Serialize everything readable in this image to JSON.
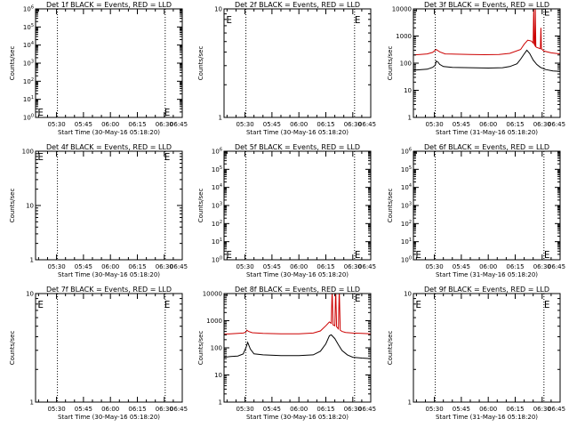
{
  "figure": {
    "x_axis_label_30": "Start Time (30-May-16 05:18:20)",
    "x_axis_label_31": "Start Time (31-May-16 05:18:20)",
    "y_axis_label": "Counts/sec",
    "legend_note": "BLACK = Events, RED = LLD"
  },
  "chart_data": [
    {
      "type": "line",
      "title": "Det 1f BLACK = Events, RED = LLD",
      "xlabel": "Start Time (30-May-16 05:18:20)",
      "ylabel": "Counts/sec",
      "scale": "log",
      "ylim_exp": [
        0,
        6
      ],
      "ytick_labels": [
        "10^0",
        "10^1",
        "10^2",
        "10^3",
        "10^4",
        "10^5",
        "10^6"
      ],
      "xtick_labels": [
        "05:30",
        "05:45",
        "06:00",
        "06:15",
        "06:30",
        "06:45"
      ],
      "xlim_min": [
        18.33,
        100
      ],
      "xticks_min": [
        30,
        45,
        60,
        75,
        90,
        105
      ],
      "vlines_min": [
        30.5,
        90.5
      ],
      "markers": [
        {
          "x_min": 19.5,
          "y_frac": 0.05
        },
        {
          "x_min": 90.0,
          "y_frac": 0.05
        }
      ],
      "series": []
    },
    {
      "type": "line",
      "title": "Det 2f BLACK = Events, RED = LLD",
      "xlabel": "Start Time (30-May-16 05:18:20)",
      "ylabel": "Counts/sec",
      "scale": "log",
      "ylim_exp": [
        0,
        1
      ],
      "ytick_labels": [
        "1",
        "10"
      ],
      "xtick_labels": [
        "05:30",
        "05:45",
        "06:00",
        "06:15",
        "06:30",
        "06:45"
      ],
      "xlim_min": [
        18.33,
        100
      ],
      "xticks_min": [
        30,
        45,
        60,
        75,
        90,
        105
      ],
      "vlines_min": [
        30.5,
        91
      ],
      "markers": [
        {
          "x_min": 19.5,
          "y_frac": 0.9
        },
        {
          "x_min": 91,
          "y_frac": 0.9
        }
      ],
      "series": []
    },
    {
      "type": "line",
      "title": "Det 3f BLACK = Events, RED = LLD",
      "xlabel": "Start Time (31-May-16 05:18:20)",
      "ylabel": "Counts/sec",
      "scale": "log",
      "ylim_exp": [
        0,
        4
      ],
      "ytick_labels": [
        "1",
        "10",
        "100",
        "1000",
        "10000"
      ],
      "xtick_labels": [
        "05:30",
        "05:45",
        "06:00",
        "06:15",
        "06:30",
        "06:45"
      ],
      "xlim_min": [
        18.33,
        100
      ],
      "xticks_min": [
        30,
        45,
        60,
        75,
        90,
        105
      ],
      "vlines_min": [
        30.5,
        91
      ],
      "markers": [
        {
          "x_min": 91,
          "y_frac": 0.97
        }
      ],
      "series": [
        {
          "name": "LLD",
          "color": "#cc0000",
          "x": [
            18.33,
            22,
            26,
            29,
            31,
            33,
            36,
            42,
            50,
            58,
            66,
            72,
            78,
            80,
            82,
            84,
            85,
            85.3,
            85.6,
            86,
            86.2,
            86.5,
            87,
            88,
            89,
            89.3,
            89.6,
            90,
            91,
            95,
            100
          ],
          "y": [
            200,
            210,
            220,
            250,
            320,
            260,
            220,
            215,
            210,
            205,
            210,
            230,
            320,
            500,
            700,
            650,
            550,
            12000,
            500,
            450,
            12000,
            400,
            380,
            360,
            340,
            2000,
            340,
            320,
            280,
            240,
            220
          ]
        },
        {
          "name": "Events",
          "color": "#000000",
          "x": [
            18.33,
            22,
            26,
            29,
            30.5,
            31,
            32,
            33,
            35,
            40,
            50,
            60,
            68,
            72,
            76,
            78,
            80,
            81.5,
            83,
            85,
            87,
            89,
            92,
            96,
            100
          ],
          "y": [
            55,
            57,
            60,
            70,
            85,
            120,
            110,
            90,
            75,
            70,
            68,
            66,
            68,
            75,
            95,
            140,
            220,
            300,
            230,
            130,
            90,
            70,
            58,
            52,
            50
          ]
        }
      ]
    },
    {
      "type": "line",
      "title": "Det 4f BLACK = Events, RED = LLD",
      "xlabel": "Start Time (30-May-16 05:18:20)",
      "ylabel": "Counts/sec",
      "scale": "log",
      "ylim_exp": [
        0,
        2
      ],
      "ytick_labels": [
        "1",
        "10",
        "100"
      ],
      "xtick_labels": [
        "05:30",
        "05:45",
        "06:00",
        "06:15",
        "06:30",
        "06:45"
      ],
      "xlim_min": [
        18.33,
        100
      ],
      "xticks_min": [
        30,
        45,
        60,
        75,
        90,
        105
      ],
      "vlines_min": [
        30.5,
        90.5
      ],
      "markers": [
        {
          "x_min": 19.5,
          "y_frac": 0.95
        },
        {
          "x_min": 90,
          "y_frac": 0.95
        }
      ],
      "series": []
    },
    {
      "type": "line",
      "title": "Det 5f BLACK = Events, RED = LLD",
      "xlabel": "Start Time (30-May-16 05:18:20)",
      "ylabel": "Counts/sec",
      "scale": "log",
      "ylim_exp": [
        0,
        6
      ],
      "ytick_labels": [
        "10^0",
        "10^1",
        "10^2",
        "10^3",
        "10^4",
        "10^5",
        "10^6"
      ],
      "xtick_labels": [
        "05:30",
        "05:45",
        "06:00",
        "06:15",
        "06:30",
        "06:45"
      ],
      "xlim_min": [
        18.33,
        100
      ],
      "xticks_min": [
        30,
        45,
        60,
        75,
        90,
        105
      ],
      "vlines_min": [
        30.5,
        91
      ],
      "markers": [
        {
          "x_min": 19.5,
          "y_frac": 0.05
        },
        {
          "x_min": 91,
          "y_frac": 0.05
        }
      ],
      "series": []
    },
    {
      "type": "line",
      "title": "Det 6f BLACK = Events, RED = LLD",
      "xlabel": "Start Time (31-May-16 05:18:20)",
      "ylabel": "Counts/sec",
      "scale": "log",
      "ylim_exp": [
        0,
        6
      ],
      "ytick_labels": [
        "10^0",
        "10^1",
        "10^2",
        "10^3",
        "10^4",
        "10^5",
        "10^6"
      ],
      "xtick_labels": [
        "05:30",
        "05:45",
        "06:00",
        "06:15",
        "06:30",
        "06:45"
      ],
      "xlim_min": [
        18.33,
        100
      ],
      "xticks_min": [
        30,
        45,
        60,
        75,
        90,
        105
      ],
      "vlines_min": [
        30.5,
        91
      ],
      "markers": [
        {
          "x_min": 19.5,
          "y_frac": 0.05
        },
        {
          "x_min": 91,
          "y_frac": 0.05
        }
      ],
      "series": []
    },
    {
      "type": "line",
      "title": "Det 7f BLACK = Events, RED = LLD",
      "xlabel": "Start Time (30-May-16 05:18:20)",
      "ylabel": "Counts/sec",
      "scale": "log",
      "ylim_exp": [
        0,
        1
      ],
      "ytick_labels": [
        "1",
        "10"
      ],
      "xtick_labels": [
        "05:30",
        "05:45",
        "06:00",
        "06:15",
        "06:30",
        "06:45"
      ],
      "xlim_min": [
        18.33,
        100
      ],
      "xticks_min": [
        30,
        45,
        60,
        75,
        90,
        105
      ],
      "vlines_min": [
        30.5,
        90.5
      ],
      "markers": [
        {
          "x_min": 19.5,
          "y_frac": 0.9
        },
        {
          "x_min": 90,
          "y_frac": 0.9
        }
      ],
      "series": []
    },
    {
      "type": "line",
      "title": "Det 8f BLACK = Events, RED = LLD",
      "xlabel": "Start Time (30-May-16 05:18:20)",
      "ylabel": "Counts/sec",
      "scale": "log",
      "ylim_exp": [
        0,
        4
      ],
      "ytick_labels": [
        "1",
        "10",
        "100",
        "1000",
        "10000"
      ],
      "xtick_labels": [
        "05:30",
        "05:45",
        "06:00",
        "06:15",
        "06:30",
        "06:45"
      ],
      "xlim_min": [
        18.33,
        100
      ],
      "xticks_min": [
        30,
        45,
        60,
        75,
        90,
        105
      ],
      "vlines_min": [
        30.5,
        91
      ],
      "markers": [
        {
          "x_min": 91,
          "y_frac": 0.96
        }
      ],
      "series": [
        {
          "name": "LLD",
          "color": "#cc0000",
          "x": [
            18.33,
            22,
            26,
            29,
            30.5,
            31,
            32,
            34,
            40,
            50,
            60,
            68,
            72,
            75,
            77,
            78,
            78.5,
            79,
            80,
            80.5,
            81,
            82,
            82.5,
            83,
            84,
            86,
            90,
            95,
            100
          ],
          "y": [
            320,
            330,
            340,
            350,
            380,
            450,
            400,
            360,
            340,
            330,
            330,
            350,
            420,
            650,
            900,
            800,
            15000,
            700,
            650,
            15000,
            600,
            500,
            15000,
            450,
            400,
            370,
            350,
            340,
            330
          ]
        },
        {
          "name": "Events",
          "color": "#000000",
          "x": [
            18.33,
            22,
            26,
            29,
            30.5,
            31.5,
            33,
            35,
            40,
            50,
            60,
            68,
            72,
            75,
            77,
            78,
            80,
            82,
            84,
            87,
            90,
            95,
            100
          ],
          "y": [
            45,
            48,
            50,
            60,
            100,
            160,
            90,
            60,
            55,
            52,
            52,
            55,
            75,
            140,
            280,
            300,
            220,
            130,
            80,
            55,
            45,
            42,
            40
          ]
        }
      ]
    },
    {
      "type": "line",
      "title": "Det 9f BLACK = Events, RED = LLD",
      "xlabel": "Start Time (31-May-16 05:18:20)",
      "ylabel": "Counts/sec",
      "scale": "log",
      "ylim_exp": [
        0,
        1
      ],
      "ytick_labels": [
        "1",
        "10"
      ],
      "xtick_labels": [
        "05:30",
        "05:45",
        "06:00",
        "06:15",
        "06:30",
        "06:45"
      ],
      "xlim_min": [
        18.33,
        100
      ],
      "xticks_min": [
        30,
        45,
        60,
        75,
        90,
        105
      ],
      "vlines_min": [
        30.5,
        91
      ],
      "markers": [
        {
          "x_min": 19.5,
          "y_frac": 0.9
        },
        {
          "x_min": 91,
          "y_frac": 0.9
        }
      ],
      "series": []
    }
  ]
}
